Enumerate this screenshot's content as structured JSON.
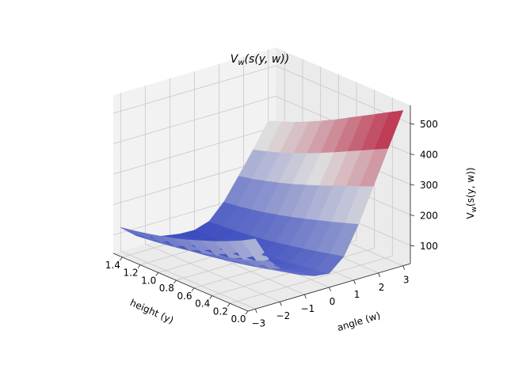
{
  "chart_data": {
    "type": "surface",
    "title": "V_w(s(y, w))",
    "xlabel": "height (y)",
    "ylabel": "angle (w)",
    "zlabel": "V_w(s(y, w))",
    "xlim": [
      0.0,
      1.5
    ],
    "ylim": [
      -3.3,
      3.3
    ],
    "zlim": [
      40,
      560
    ],
    "x_ticks": [
      "0.0",
      "0.2",
      "0.4",
      "0.6",
      "0.8",
      "1.0",
      "1.2",
      "1.4"
    ],
    "y_ticks": [
      "−3",
      "−2",
      "−1",
      "0",
      "1",
      "2",
      "3"
    ],
    "z_ticks": [
      "100",
      "200",
      "300",
      "400",
      "500"
    ],
    "x_tick_values": [
      0.0,
      0.2,
      0.4,
      0.6,
      0.8,
      1.0,
      1.2,
      1.4
    ],
    "y_tick_values": [
      -3,
      -2,
      -1,
      0,
      1,
      2,
      3
    ],
    "z_tick_values": [
      100,
      200,
      300,
      400,
      500
    ],
    "grid": true,
    "colormap": "coolwarm",
    "surface": {
      "x": [
        0.0,
        0.15,
        0.3,
        0.45,
        0.6,
        0.75,
        0.9,
        1.05,
        1.2,
        1.35,
        1.5
      ],
      "y": [
        -3.0,
        -2.4,
        -1.8,
        -1.2,
        -0.6,
        0.0,
        0.6,
        1.2,
        1.8,
        2.4,
        3.0
      ],
      "z": [
        [
          270,
          182,
          133,
          110,
          92,
          86,
          128,
          220,
          330,
          440,
          550
        ],
        [
          245,
          165,
          122,
          101,
          84,
          79,
          118,
          205,
          311,
          418,
          525
        ],
        [
          224,
          150,
          111,
          92,
          76,
          72,
          107,
          190,
          293,
          396,
          500
        ],
        [
          205,
          137,
          101,
          83,
          69,
          65,
          97,
          176,
          275,
          374,
          475
        ],
        [
          188,
          125,
          92,
          75,
          62,
          58,
          88,
          162,
          257,
          352,
          450
        ],
        [
          172,
          114,
          84,
          68,
          56,
          52,
          79,
          149,
          240,
          331,
          425
        ],
        [
          158,
          104,
          76,
          62,
          51,
          48,
          71,
          137,
          224,
          311,
          402
        ],
        [
          146,
          96,
          70,
          57,
          47,
          44,
          65,
          126,
          209,
          292,
          380
        ],
        [
          135,
          89,
          65,
          53,
          44,
          42,
          60,
          117,
          196,
          275,
          360
        ],
        [
          126,
          83,
          61,
          50,
          42,
          40,
          56,
          109,
          184,
          260,
          342
        ],
        [
          118,
          78,
          58,
          48,
          40,
          38,
          53,
          103,
          174,
          247,
          326
        ]
      ]
    }
  },
  "colors": {
    "pane": "#f2f2f2",
    "pane_side": "#ebebeb",
    "grid": "#c8c8c8",
    "axis_line": "#222222",
    "cmap_low": "#3b4cc0",
    "cmap_mid": "#dddddd",
    "cmap_high": "#b40426"
  }
}
